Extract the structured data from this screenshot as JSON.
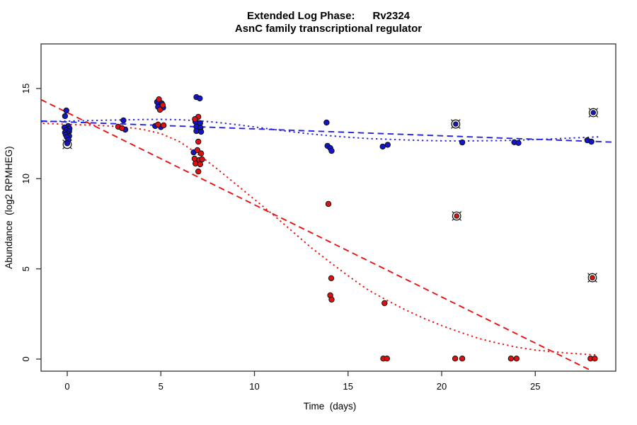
{
  "chart_data": {
    "type": "scatter",
    "title": "Extended Log Phase:      Rv2324",
    "subtitle": "AsnC family transcriptional regulator",
    "xlabel": "Time  (days)",
    "ylabel": "Abundance  (log2 RPMHEG)",
    "xlim": [
      -1.4,
      29.3
    ],
    "ylim": [
      -0.67,
      17.47
    ],
    "xticks": [
      0,
      5,
      10,
      15,
      20,
      25
    ],
    "yticks": [
      0,
      5,
      10,
      15
    ],
    "grid": false,
    "legend": "none",
    "colors": {
      "blue_point": "#1414CC",
      "red_point": "#DE1111",
      "blue_line": "#2424E0",
      "red_line": "#EA1111",
      "marker_edge": "#111111",
      "axis": "#333333"
    },
    "series": [
      {
        "name": "blue-points",
        "color": "#1414CC",
        "points": [
          [
            -0.05,
            13.78
          ],
          [
            -0.12,
            13.47
          ],
          [
            0.05,
            12.92
          ],
          [
            -0.15,
            12.84
          ],
          [
            0.12,
            12.78
          ],
          [
            -0.05,
            12.7
          ],
          [
            0.1,
            12.62
          ],
          [
            -0.12,
            12.56
          ],
          [
            0.02,
            12.5
          ],
          [
            -0.08,
            12.44
          ],
          [
            0.1,
            12.36
          ],
          [
            -0.02,
            12.3
          ],
          [
            0.06,
            12.16
          ],
          [
            0.0,
            11.96
          ],
          [
            3.0,
            13.23
          ],
          [
            3.1,
            12.72
          ],
          [
            4.8,
            14.25
          ],
          [
            5.05,
            14.17
          ],
          [
            4.85,
            13.98
          ],
          [
            5.12,
            13.94
          ],
          [
            4.7,
            12.92
          ],
          [
            5.0,
            12.86
          ],
          [
            6.9,
            14.52
          ],
          [
            7.08,
            14.45
          ],
          [
            6.85,
            13.15
          ],
          [
            7.1,
            13.08
          ],
          [
            6.9,
            12.88
          ],
          [
            7.12,
            12.82
          ],
          [
            6.9,
            12.64
          ],
          [
            7.15,
            12.6
          ],
          [
            6.75,
            11.46
          ],
          [
            13.85,
            13.11
          ],
          [
            13.9,
            11.82
          ],
          [
            14.05,
            11.7
          ],
          [
            14.12,
            11.54
          ],
          [
            16.85,
            11.78
          ],
          [
            17.12,
            11.88
          ],
          [
            21.1,
            12.01
          ],
          [
            23.88,
            12.02
          ],
          [
            24.1,
            11.98
          ],
          [
            27.78,
            12.13
          ],
          [
            28.0,
            12.05
          ]
        ]
      },
      {
        "name": "red-points",
        "color": "#DE1111",
        "points": [
          [
            2.72,
            12.88
          ],
          [
            2.92,
            12.8
          ],
          [
            4.9,
            14.4
          ],
          [
            5.1,
            14.08
          ],
          [
            4.95,
            13.82
          ],
          [
            4.85,
            13.0
          ],
          [
            5.15,
            12.96
          ],
          [
            7.0,
            13.43
          ],
          [
            6.82,
            13.3
          ],
          [
            7.0,
            12.05
          ],
          [
            6.95,
            11.58
          ],
          [
            7.15,
            11.4
          ],
          [
            6.8,
            11.11
          ],
          [
            7.05,
            11.03
          ],
          [
            7.2,
            11.07
          ],
          [
            6.85,
            10.84
          ],
          [
            7.1,
            10.8
          ],
          [
            7.0,
            10.4
          ],
          [
            13.95,
            8.6
          ],
          [
            14.1,
            4.48
          ],
          [
            14.05,
            3.53
          ],
          [
            14.12,
            3.3
          ],
          [
            16.95,
            3.1
          ],
          [
            16.88,
            0.03
          ],
          [
            17.08,
            0.03
          ],
          [
            20.72,
            0.03
          ],
          [
            21.1,
            0.03
          ],
          [
            23.7,
            0.03
          ],
          [
            24.0,
            0.03
          ],
          [
            27.95,
            0.03
          ],
          [
            28.18,
            0.03
          ]
        ]
      }
    ],
    "fit_lines": [
      {
        "name": "blue-linear-fit",
        "color": "#2424E0",
        "dash": "dashed",
        "points": [
          [
            -1.4,
            13.2
          ],
          [
            29.3,
            12.02
          ]
        ]
      },
      {
        "name": "blue-smooth-fit",
        "color": "#2424E0",
        "dash": "dotted",
        "points": [
          [
            -1.4,
            13.16
          ],
          [
            0,
            13.19
          ],
          [
            2,
            13.24
          ],
          [
            4,
            13.28
          ],
          [
            5,
            13.29
          ],
          [
            6,
            13.27
          ],
          [
            7,
            13.21
          ],
          [
            8,
            13.12
          ],
          [
            9,
            13.0
          ],
          [
            10,
            12.87
          ],
          [
            11,
            12.73
          ],
          [
            12,
            12.6
          ],
          [
            13,
            12.48
          ],
          [
            14,
            12.38
          ],
          [
            15,
            12.3
          ],
          [
            16,
            12.23
          ],
          [
            17,
            12.19
          ],
          [
            18,
            12.15
          ],
          [
            19,
            12.12
          ],
          [
            20,
            12.1
          ],
          [
            21,
            12.09
          ],
          [
            22,
            12.1
          ],
          [
            23,
            12.11
          ],
          [
            24,
            12.13
          ],
          [
            25,
            12.17
          ],
          [
            26,
            12.21
          ],
          [
            27,
            12.26
          ],
          [
            28.4,
            12.32
          ]
        ]
      },
      {
        "name": "red-linear-fit",
        "color": "#EA1111",
        "dash": "dashed",
        "points": [
          [
            -1.4,
            14.38
          ],
          [
            29.3,
            -1.31
          ]
        ]
      },
      {
        "name": "red-smooth-fit",
        "color": "#EA1111",
        "dash": "dotted",
        "points": [
          [
            -1.3,
            13.07
          ],
          [
            0,
            13.01
          ],
          [
            1,
            12.98
          ],
          [
            2,
            12.94
          ],
          [
            3,
            12.87
          ],
          [
            4,
            12.74
          ],
          [
            5,
            12.5
          ],
          [
            6,
            12.05
          ],
          [
            7,
            11.35
          ],
          [
            8,
            10.55
          ],
          [
            9,
            9.7
          ],
          [
            10,
            8.85
          ],
          [
            11,
            8.0
          ],
          [
            12,
            7.1
          ],
          [
            13,
            6.2
          ],
          [
            14,
            5.4
          ],
          [
            15,
            4.62
          ],
          [
            16,
            3.88
          ],
          [
            17,
            3.3
          ],
          [
            18,
            2.76
          ],
          [
            19,
            2.28
          ],
          [
            20,
            1.86
          ],
          [
            21,
            1.48
          ],
          [
            22,
            1.14
          ],
          [
            23,
            0.88
          ],
          [
            24,
            0.66
          ],
          [
            25,
            0.5
          ],
          [
            26,
            0.4
          ],
          [
            27,
            0.31
          ],
          [
            28.3,
            0.23
          ]
        ]
      }
    ],
    "flagged_points": [
      {
        "x": 0.0,
        "y": 11.9,
        "dot": "none",
        "behind": true
      },
      {
        "x": 20.75,
        "y": 13.03,
        "dot": "#1414CC",
        "behind": false
      },
      {
        "x": 20.8,
        "y": 7.93,
        "dot": "#DE1111",
        "behind": false
      },
      {
        "x": 28.1,
        "y": 13.66,
        "dot": "#1414CC",
        "behind": false
      },
      {
        "x": 28.05,
        "y": 4.51,
        "dot": "#DE1111",
        "behind": false
      }
    ]
  }
}
